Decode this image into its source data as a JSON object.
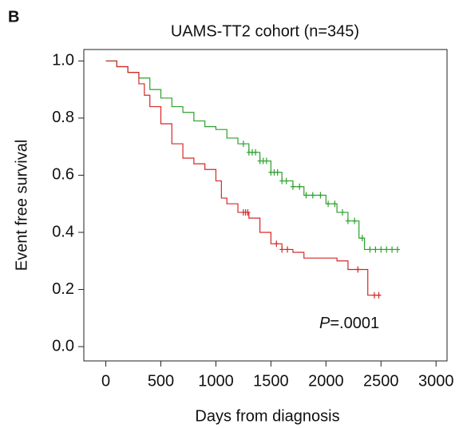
{
  "chart_data": {
    "type": "step",
    "panel_label": "B",
    "title": "UAMS-TT2 cohort (n=345)",
    "x_label": "Days from diagnosis",
    "y_label": "Event free survival",
    "annotation": {
      "italic": "P",
      "rest": "=.0001"
    },
    "xlim": [
      -200,
      3100
    ],
    "ylim": [
      -0.05,
      1.04
    ],
    "xticks": [
      0,
      500,
      1000,
      1500,
      2000,
      2500,
      3000
    ],
    "yticks": [
      {
        "value": 0,
        "label": "0.0"
      },
      0.2,
      0.4,
      0.6,
      0.8,
      {
        "value": 1,
        "label": "1.0"
      }
    ],
    "series": [
      {
        "color": "#2ca02c",
        "x": [
          0,
          100,
          200,
          300,
          400,
          500,
          600,
          700,
          800,
          900,
          1000,
          1100,
          1200,
          1300,
          1400,
          1500,
          1600,
          1700,
          1800,
          2000,
          2100,
          2200,
          2300,
          2350,
          2650
        ],
        "values": [
          1.0,
          0.98,
          0.96,
          0.94,
          0.9,
          0.87,
          0.84,
          0.82,
          0.79,
          0.77,
          0.76,
          0.73,
          0.71,
          0.68,
          0.65,
          0.61,
          0.58,
          0.56,
          0.53,
          0.5,
          0.47,
          0.44,
          0.38,
          0.34,
          0.34
        ],
        "censored": [
          1250,
          1300,
          1330,
          1360,
          1400,
          1430,
          1460,
          1500,
          1530,
          1560,
          1600,
          1640,
          1700,
          1760,
          1820,
          1880,
          1950,
          2020,
          2080,
          2150,
          2200,
          2260,
          2330,
          2400,
          2450,
          2500,
          2550,
          2600,
          2650
        ]
      },
      {
        "color": "#d62728",
        "x": [
          0,
          100,
          200,
          300,
          350,
          400,
          500,
          600,
          700,
          800,
          900,
          1000,
          1050,
          1100,
          1200,
          1300,
          1400,
          1500,
          1600,
          1700,
          1800,
          2100,
          2200,
          2380,
          2500
        ],
        "values": [
          1.0,
          0.98,
          0.96,
          0.92,
          0.88,
          0.84,
          0.78,
          0.71,
          0.66,
          0.64,
          0.62,
          0.58,
          0.52,
          0.5,
          0.47,
          0.45,
          0.4,
          0.36,
          0.34,
          0.33,
          0.31,
          0.3,
          0.27,
          0.18,
          0.18
        ],
        "censored": [
          1250,
          1270,
          1290,
          1550,
          1600,
          1650,
          2290,
          2440,
          2480
        ]
      }
    ]
  }
}
